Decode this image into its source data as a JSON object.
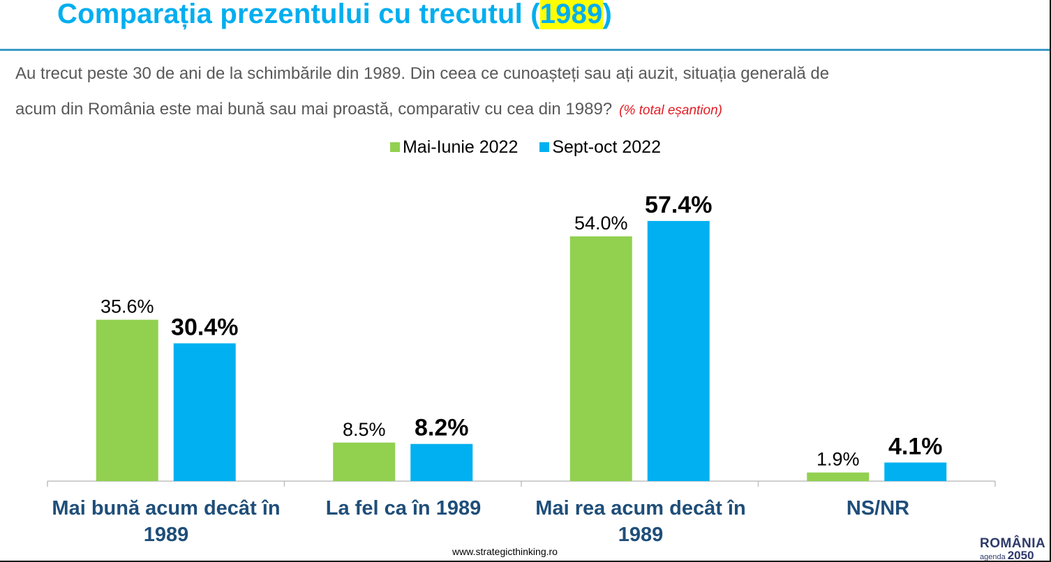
{
  "page": {
    "title_prefix": "Comparația prezentului cu trecutul (",
    "title_highlight": "1989",
    "title_suffix": ")",
    "question_line1": "Au trecut peste 30 de ani de la schimbările din 1989. Din ceea ce cunoașteți sau ați auzit, situația generală de",
    "question_line2": "acum din România este mai bună sau mai proastă, comparativ cu cea din 1989?",
    "question_note": "(% total eșantion)",
    "footer": "www.strategicthinking.ro",
    "logo_line1": "ROMÂNIA",
    "logo_line2a": "agenda",
    "logo_line2b": "2050"
  },
  "chart_data": {
    "type": "bar",
    "categories": [
      "Mai bună acum decât în 1989",
      "La fel ca în 1989",
      "Mai rea acum decât în 1989",
      "NS/NR"
    ],
    "series": [
      {
        "name": "Mai-Iunie 2022",
        "values": [
          35.6,
          8.5,
          54.0,
          1.9
        ],
        "labels": [
          "35.6%",
          "8.5%",
          "54.0%",
          "1.9%"
        ],
        "color": "#92d050",
        "bold": false
      },
      {
        "name": "Sept-oct 2022",
        "values": [
          30.4,
          8.2,
          57.4,
          4.1
        ],
        "labels": [
          "30.4%",
          "8.2%",
          "57.4%",
          "4.1%"
        ],
        "color": "#00b0f0",
        "bold": true
      }
    ],
    "ylim": [
      0,
      60
    ],
    "grid": false,
    "legend": "top-center"
  }
}
